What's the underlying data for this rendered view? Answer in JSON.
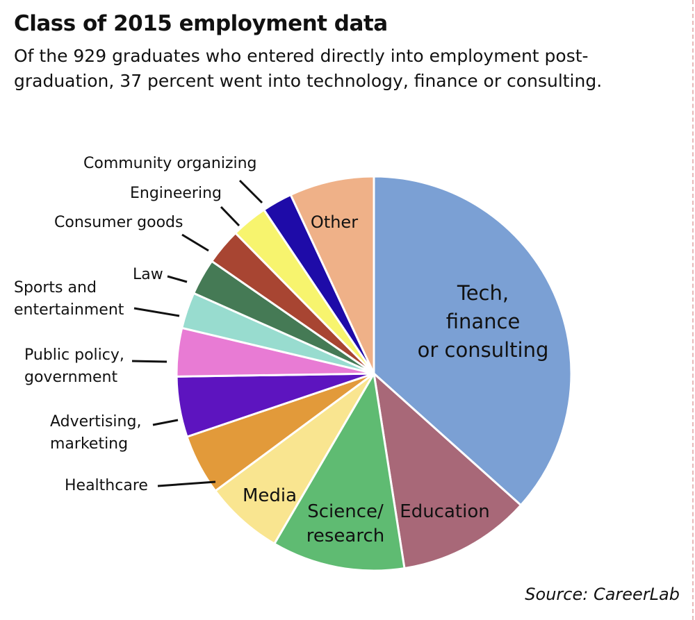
{
  "title": "Class of 2015 employment data",
  "subtitle": "Of the 929 graduates who entered directly into employment post-graduation, 37 percent went into technology, finance or consulting.",
  "source": "Source: CareerLab",
  "chart_data": {
    "type": "pie",
    "title": "Class of 2015 employment data",
    "unit": "percent of graduates entering employment (estimated)",
    "slices": [
      {
        "name": "Tech, finance or consulting",
        "label_lines": [
          "Tech,",
          "finance",
          "or consulting"
        ],
        "value": 37.0,
        "color": "#7ba0d4",
        "label_mode": "inside"
      },
      {
        "name": "Education",
        "label_lines": [
          "Education"
        ],
        "value": 11.0,
        "color": "#a86878",
        "label_mode": "inside"
      },
      {
        "name": "Science/research",
        "label_lines": [
          "Science/",
          "research"
        ],
        "value": 11.0,
        "color": "#5fbb72",
        "label_mode": "inside"
      },
      {
        "name": "Media",
        "label_lines": [
          "Media"
        ],
        "value": 6.5,
        "color": "#f9e590",
        "label_mode": "inside"
      },
      {
        "name": "Healthcare",
        "label_lines": [
          "Healthcare"
        ],
        "value": 5.0,
        "color": "#e29a3a",
        "label_mode": "outside"
      },
      {
        "name": "Advertising, marketing",
        "label_lines": [
          "Advertising,",
          "marketing"
        ],
        "value": 5.0,
        "color": "#5d14bf",
        "label_mode": "outside"
      },
      {
        "name": "Public policy, government",
        "label_lines": [
          "Public policy,",
          "government"
        ],
        "value": 4.0,
        "color": "#e87bd4",
        "label_mode": "outside"
      },
      {
        "name": "Sports and entertainment",
        "label_lines": [
          "Sports and",
          "entertainment"
        ],
        "value": 3.0,
        "color": "#98dccf",
        "label_mode": "outside"
      },
      {
        "name": "Law",
        "label_lines": [
          "Law"
        ],
        "value": 3.0,
        "color": "#457a55",
        "label_mode": "outside"
      },
      {
        "name": "Consumer goods",
        "label_lines": [
          "Consumer goods"
        ],
        "value": 3.0,
        "color": "#a84532",
        "label_mode": "outside"
      },
      {
        "name": "Engineering",
        "label_lines": [
          "Engineering"
        ],
        "value": 3.0,
        "color": "#f7f46e",
        "label_mode": "outside"
      },
      {
        "name": "Community organizing",
        "label_lines": [
          "Community organizing"
        ],
        "value": 2.5,
        "color": "#1e0ba8",
        "label_mode": "outside"
      },
      {
        "name": "Other",
        "label_lines": [
          "Other"
        ],
        "value": 7.0,
        "color": "#efb188",
        "label_mode": "inside"
      }
    ]
  }
}
